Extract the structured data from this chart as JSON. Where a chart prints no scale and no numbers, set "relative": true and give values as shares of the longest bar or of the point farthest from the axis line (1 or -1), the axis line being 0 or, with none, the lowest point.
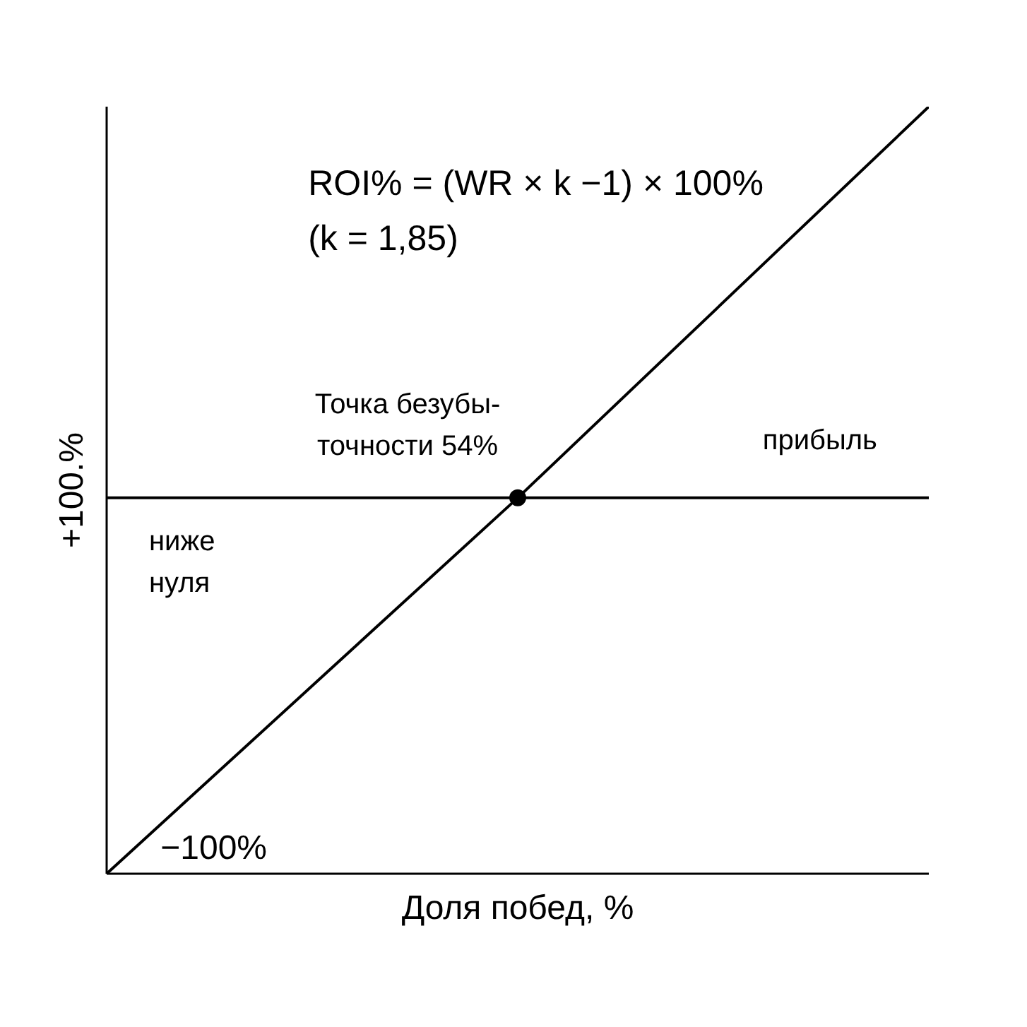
{
  "chart_data": {
    "type": "line",
    "relative": true,
    "categories": [
      null,
      null,
      null
    ],
    "xlabel": "Доля побед, %",
    "ylabel": "+100.%",
    "series": [
      {
        "color": "#000000",
        "values": [
          0,
          0.49,
          1
        ],
        "marker": "none"
      },
      {
        "color": "#000000",
        "values": [
          0.49,
          0.49,
          0.49
        ],
        "marker": "none"
      },
      {
        "color": "#000000",
        "values": [
          null,
          0.49,
          null
        ],
        "marker": "circle"
      }
    ],
    "annotations": [
      "ROI% = (WR × k −1) × 100%",
      "(k = 1,85)",
      "Точка безубы-\nточности 54%",
      "прибыль",
      "ниже\nнуля",
      "−100%"
    ],
    "grid": false,
    "line_style": "solid"
  }
}
